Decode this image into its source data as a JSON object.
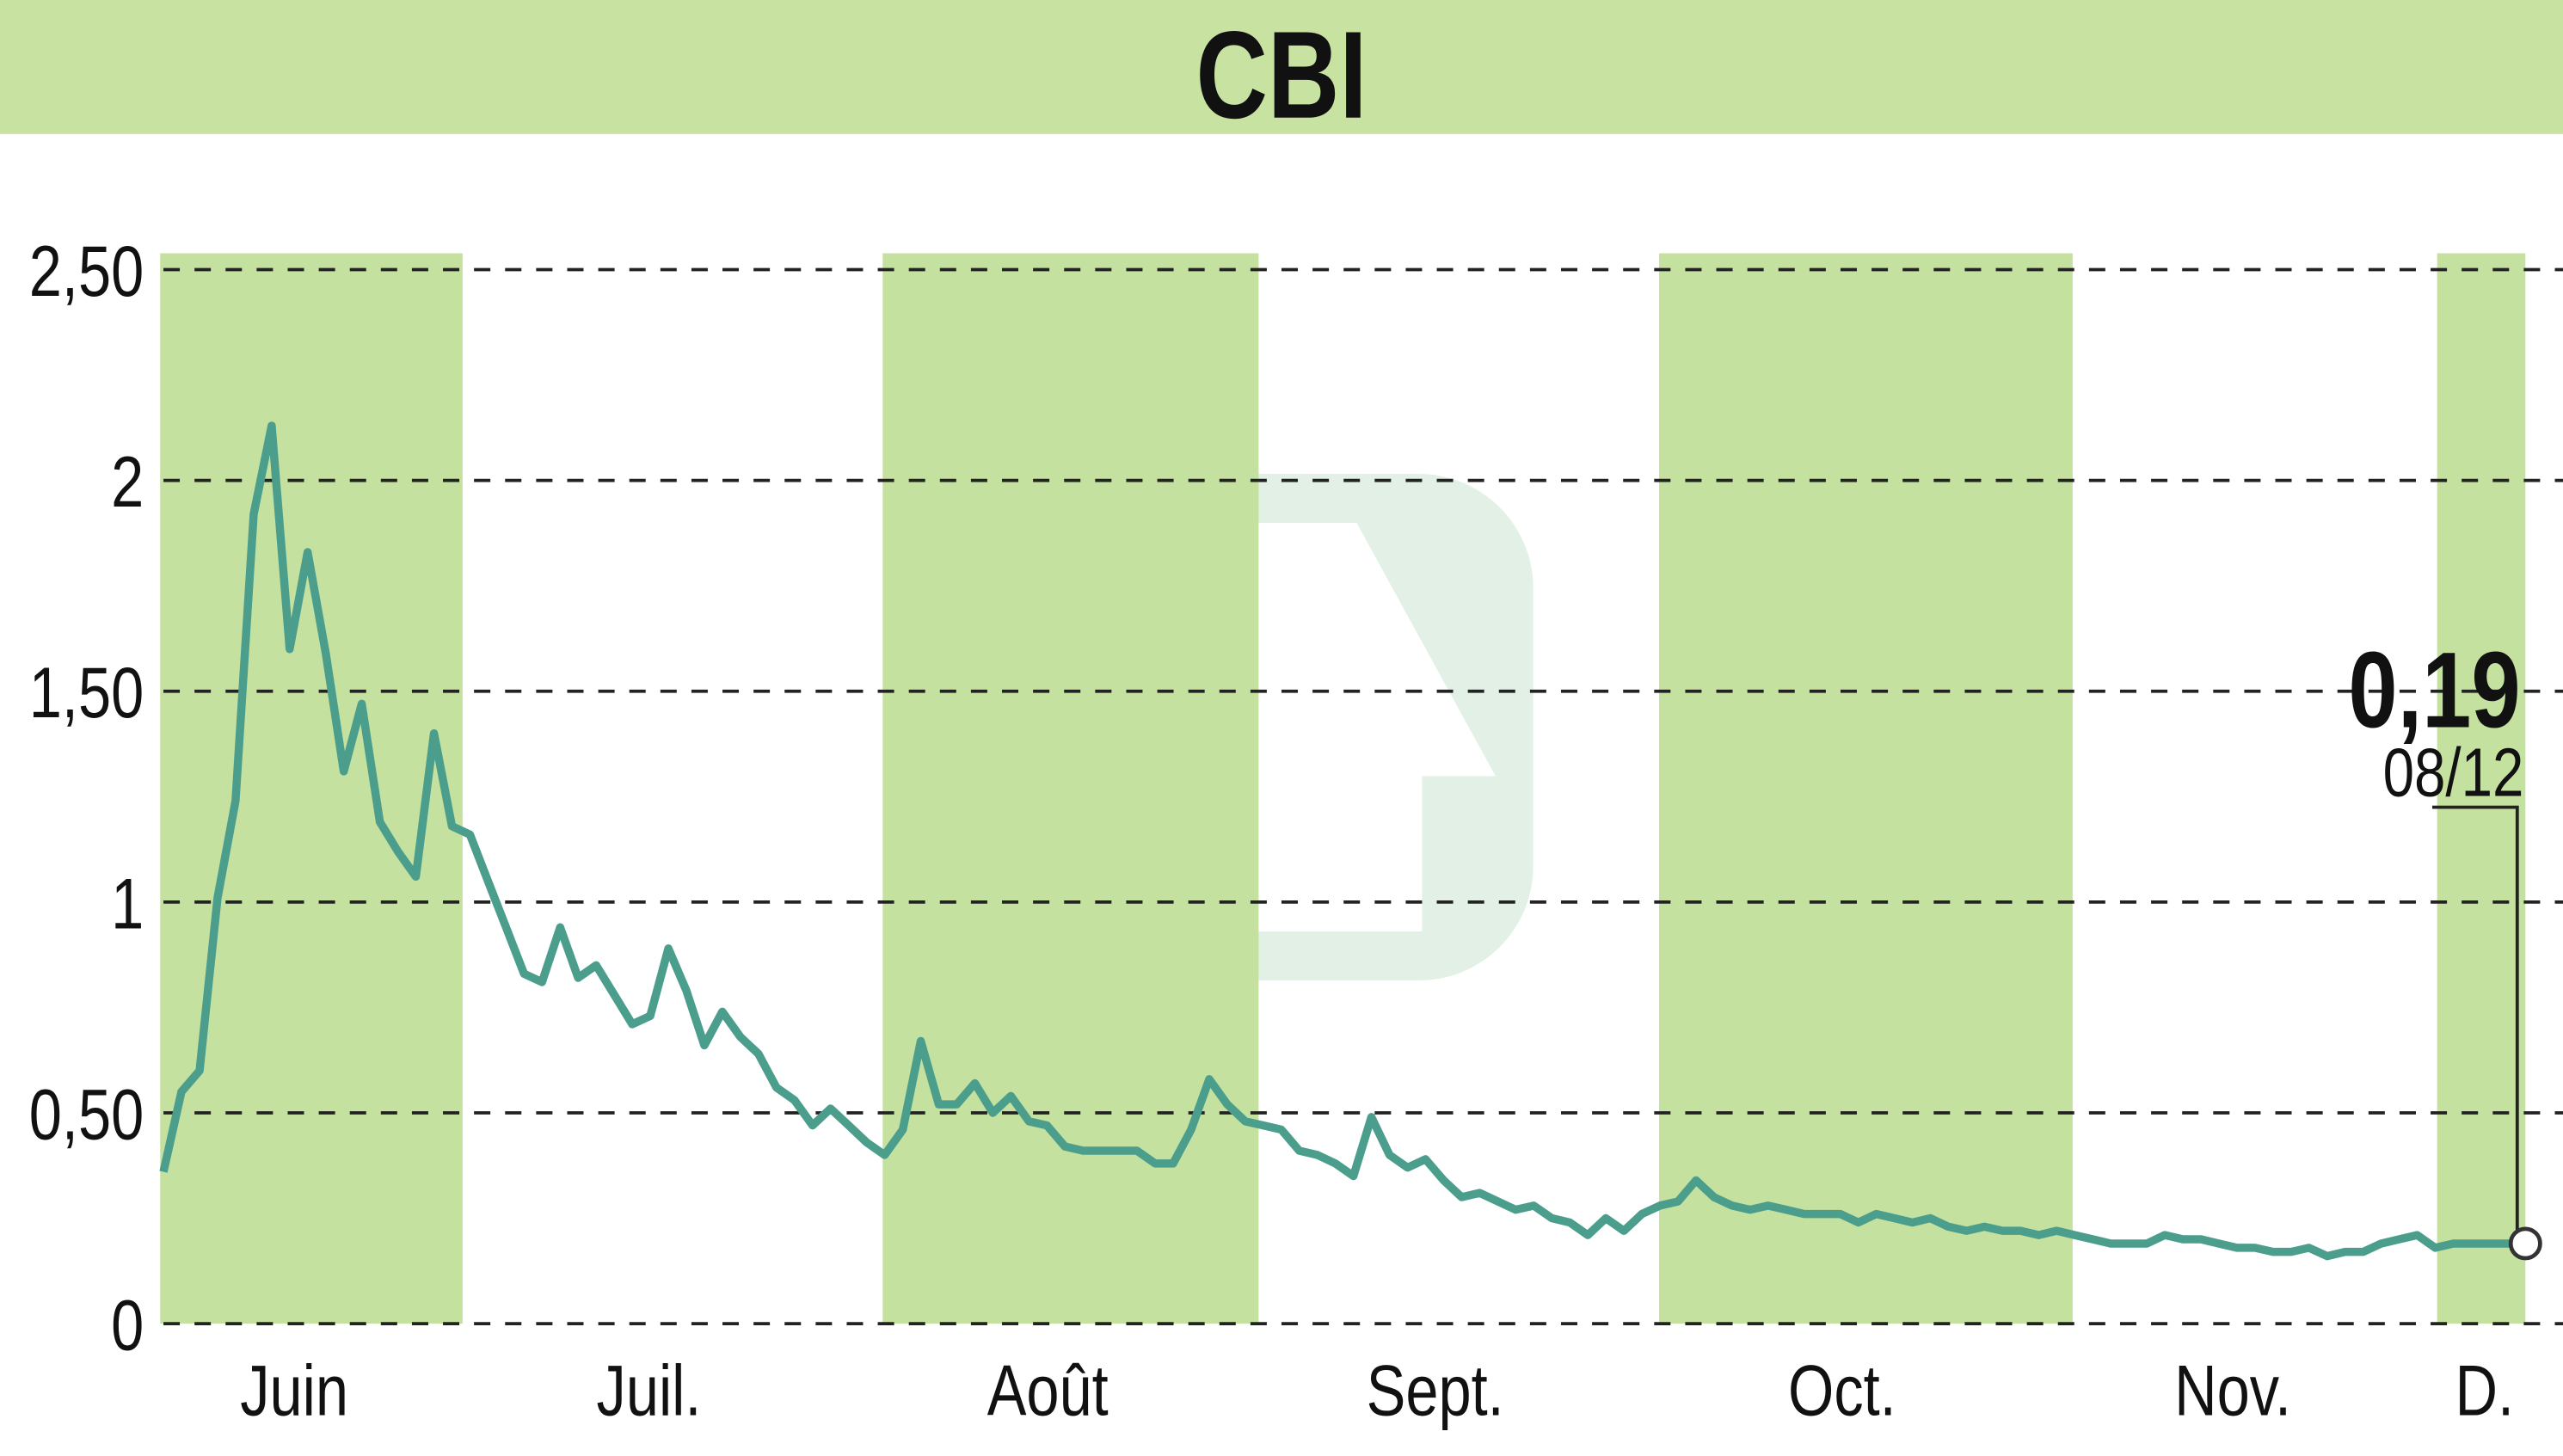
{
  "chart_data": {
    "type": "line",
    "title": "CBI",
    "x_labels": [
      "Juin",
      "Juil.",
      "Août",
      "Sept.",
      "Oct.",
      "Nov.",
      "D."
    ],
    "series": [
      {
        "color": "#4c9e8c",
        "values": [
          0.36,
          0.55,
          0.6,
          1.01,
          1.24,
          1.92,
          2.13,
          1.6,
          1.83,
          1.59,
          1.31,
          1.47,
          1.19,
          1.12,
          1.06,
          1.4,
          1.18,
          1.16,
          1.05,
          0.94,
          0.83,
          0.81,
          0.94,
          0.82,
          0.85,
          0.78,
          0.71,
          0.73,
          0.89,
          0.79,
          0.66,
          0.74,
          0.68,
          0.64,
          0.56,
          0.53,
          0.47,
          0.51,
          0.47,
          0.43,
          0.4,
          0.46,
          0.67,
          0.52,
          0.52,
          0.57,
          0.5,
          0.54,
          0.48,
          0.47,
          0.42,
          0.41,
          0.41,
          0.41,
          0.41,
          0.38,
          0.38,
          0.46,
          0.58,
          0.52,
          0.48,
          0.47,
          0.46,
          0.41,
          0.4,
          0.38,
          0.35,
          0.49,
          0.4,
          0.37,
          0.39,
          0.34,
          0.3,
          0.31,
          0.29,
          0.27,
          0.28,
          0.25,
          0.24,
          0.21,
          0.25,
          0.22,
          0.26,
          0.28,
          0.29,
          0.34,
          0.3,
          0.28,
          0.27,
          0.28,
          0.27,
          0.26,
          0.26,
          0.26,
          0.24,
          0.26,
          0.25,
          0.24,
          0.25,
          0.23,
          0.22,
          0.23,
          0.22,
          0.22,
          0.21,
          0.22,
          0.21,
          0.2,
          0.19,
          0.19,
          0.19,
          0.21,
          0.2,
          0.2,
          0.19,
          0.18,
          0.18,
          0.17,
          0.17,
          0.18,
          0.16,
          0.17,
          0.17,
          0.19,
          0.2,
          0.21,
          0.18,
          0.19,
          0.19,
          0.19,
          0.19,
          0.19
        ]
      }
    ],
    "ylim": [
      0,
      2.5
    ],
    "yticks": [
      0,
      {
        "value": 0.5,
        "label": "0,50"
      },
      1,
      {
        "value": 1.5,
        "label": "1,50"
      },
      2,
      {
        "value": 2.5,
        "label": "2,50"
      }
    ],
    "grid": true,
    "annotation": {
      "label": "0,19",
      "date": "08/12"
    },
    "fill_color": "#c5e1a0"
  }
}
